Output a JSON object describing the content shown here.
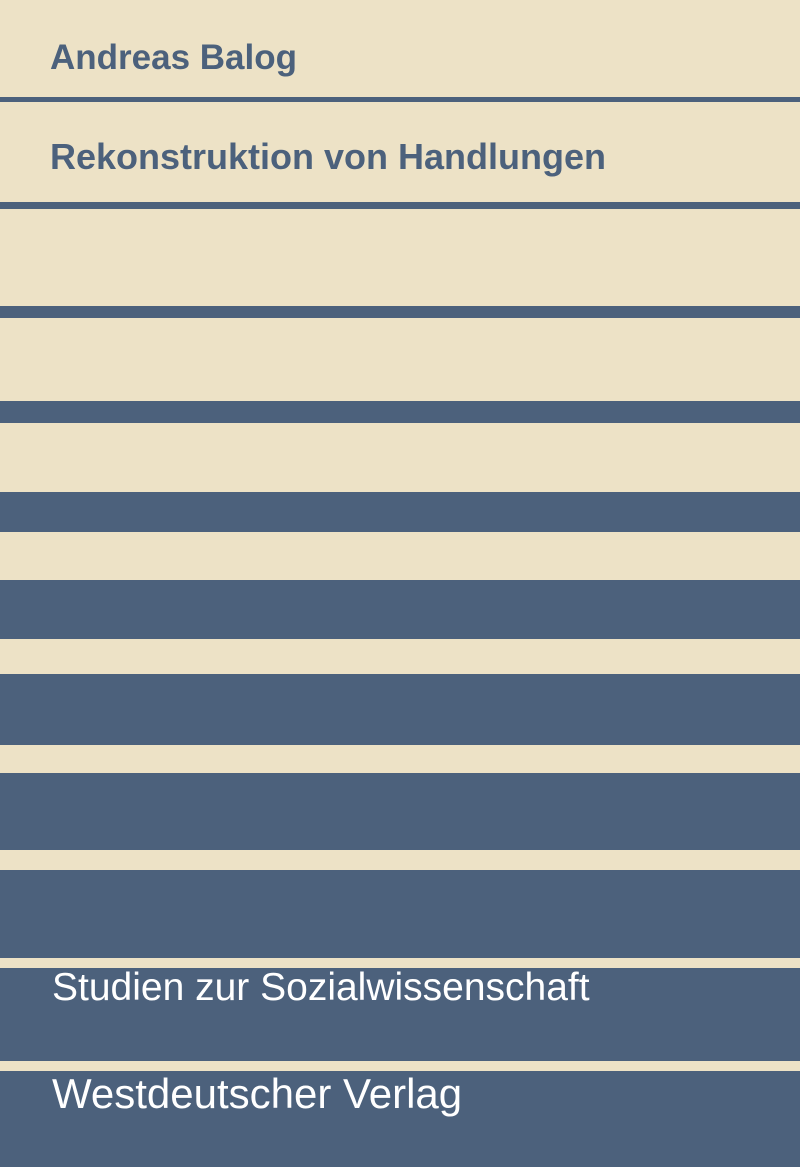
{
  "cover": {
    "author": "Andreas Balog",
    "title": "Rekonstruktion von Handlungen",
    "series": "Studien zur Sozialwissenschaft",
    "publisher": "Westdeutscher Verlag"
  },
  "colors": {
    "background": "#ede2c6",
    "stripes": "#4c617c",
    "title_text": "#4c617c",
    "band_text": "#ffffff"
  }
}
